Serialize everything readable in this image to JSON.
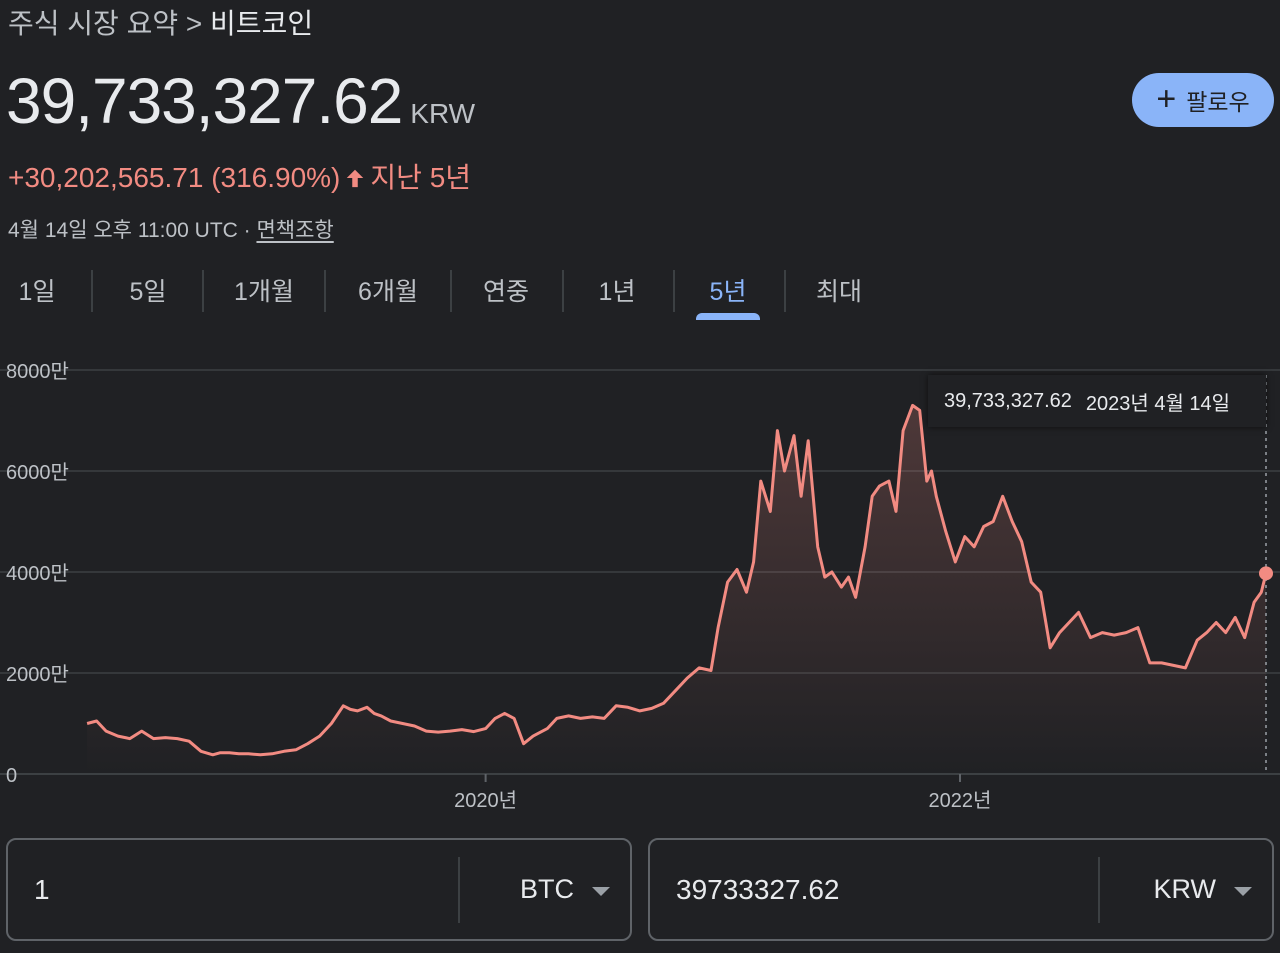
{
  "breadcrumb": {
    "parent": "주식 시장 요약",
    "separator": ">",
    "current": "비트코인"
  },
  "quote": {
    "price": "39,733,327.62",
    "currency": "KRW",
    "change": "+30,202,565.71 (316.90%)",
    "period": "지난 5년",
    "timestamp": "4월 14일 오후 11:00 UTC · ",
    "disclaimer": "면책조항"
  },
  "follow_button": {
    "label": "팔로우",
    "icon": "plus-icon"
  },
  "tabs": [
    {
      "label": "1일"
    },
    {
      "label": "5일"
    },
    {
      "label": "1개월"
    },
    {
      "label": "6개월"
    },
    {
      "label": "연중"
    },
    {
      "label": "1년"
    },
    {
      "label": "5년",
      "active": true
    },
    {
      "label": "최대"
    }
  ],
  "tooltip": {
    "value": "39,733,327.62",
    "date": "2023년 4월 14일"
  },
  "colors": {
    "accent": "#8ab4f8",
    "line": "#f28b82",
    "background": "#202124"
  },
  "chart_data": {
    "type": "area",
    "y_unit": "KRW",
    "yticks": [
      "8000만",
      "6000만",
      "4000만",
      "2000만",
      "0"
    ],
    "ytick_values": [
      80000000,
      60000000,
      40000000,
      20000000,
      0
    ],
    "ylim": [
      0,
      80000000
    ],
    "xlim": [
      2018.29,
      2023.29
    ],
    "xticks": [
      {
        "label": "2020년",
        "value": 2020.0
      },
      {
        "label": "2022년",
        "value": 2022.0
      }
    ],
    "grid": true,
    "series": [
      {
        "x": [
          2018.32,
          2018.36,
          2018.4,
          2018.45,
          2018.5,
          2018.55,
          2018.6,
          2018.65,
          2018.7,
          2018.75,
          2018.8,
          2018.85,
          2018.88,
          2018.92,
          2018.96,
          2019.0,
          2019.05,
          2019.1,
          2019.15,
          2019.2,
          2019.25,
          2019.3,
          2019.35,
          2019.4,
          2019.43,
          2019.46,
          2019.5,
          2019.53,
          2019.56,
          2019.6,
          2019.65,
          2019.7,
          2019.75,
          2019.8,
          2019.85,
          2019.9,
          2019.95,
          2020.0,
          2020.04,
          2020.08,
          2020.12,
          2020.16,
          2020.2,
          2020.22,
          2020.26,
          2020.3,
          2020.35,
          2020.4,
          2020.45,
          2020.5,
          2020.55,
          2020.6,
          2020.65,
          2020.7,
          2020.75,
          2020.8,
          2020.85,
          2020.9,
          2020.95,
          2020.98,
          2021.02,
          2021.06,
          2021.1,
          2021.13,
          2021.16,
          2021.2,
          2021.23,
          2021.26,
          2021.3,
          2021.33,
          2021.36,
          2021.4,
          2021.43,
          2021.46,
          2021.5,
          2021.53,
          2021.56,
          2021.6,
          2021.63,
          2021.66,
          2021.7,
          2021.73,
          2021.76,
          2021.8,
          2021.83,
          2021.86,
          2021.88,
          2021.9,
          2021.94,
          2021.98,
          2022.02,
          2022.06,
          2022.1,
          2022.14,
          2022.18,
          2022.22,
          2022.26,
          2022.3,
          2022.34,
          2022.38,
          2022.42,
          2022.46,
          2022.5,
          2022.55,
          2022.6,
          2022.65,
          2022.7,
          2022.75,
          2022.8,
          2022.85,
          2022.9,
          2022.95,
          2023.0,
          2023.04,
          2023.08,
          2023.12,
          2023.16,
          2023.2,
          2023.24,
          2023.27,
          2023.29
        ],
        "y": [
          10000000,
          10500000,
          8500000,
          7500000,
          7000000,
          8500000,
          7000000,
          7200000,
          7000000,
          6500000,
          4500000,
          3800000,
          4200000,
          4200000,
          4000000,
          4000000,
          3800000,
          4000000,
          4500000,
          4800000,
          6000000,
          7500000,
          10000000,
          13500000,
          12800000,
          12500000,
          13200000,
          12000000,
          11500000,
          10500000,
          10000000,
          9500000,
          8500000,
          8300000,
          8500000,
          8800000,
          8400000,
          9000000,
          11000000,
          12000000,
          11000000,
          6000000,
          7500000,
          8000000,
          9000000,
          11000000,
          11500000,
          11000000,
          11300000,
          11000000,
          13500000,
          13200000,
          12500000,
          13000000,
          14000000,
          16500000,
          19000000,
          21000000,
          20500000,
          29000000,
          38000000,
          40500000,
          36000000,
          42000000,
          58000000,
          52000000,
          68000000,
          60000000,
          67000000,
          55000000,
          66000000,
          45000000,
          39000000,
          40000000,
          37000000,
          39000000,
          35000000,
          45000000,
          55000000,
          57000000,
          58000000,
          52000000,
          68000000,
          73000000,
          72000000,
          58000000,
          60000000,
          55000000,
          48000000,
          42000000,
          47000000,
          45000000,
          49000000,
          50000000,
          55000000,
          50000000,
          46000000,
          38000000,
          36000000,
          25000000,
          28000000,
          30000000,
          32000000,
          27000000,
          28000000,
          27500000,
          28000000,
          29000000,
          22000000,
          22000000,
          21500000,
          21000000,
          26500000,
          28000000,
          30000000,
          28000000,
          31000000,
          27000000,
          34000000,
          36000000,
          39733327.62
        ]
      }
    ],
    "current_point": {
      "x": 2023.29,
      "y": 39733327.62
    }
  },
  "converter": {
    "from": {
      "value": "1",
      "unit": "BTC"
    },
    "to": {
      "value": "39733327.62",
      "unit": "KRW"
    }
  }
}
